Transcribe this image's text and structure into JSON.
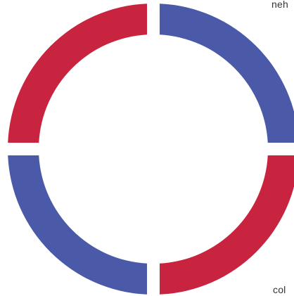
{
  "chart_data": {
    "type": "pie",
    "title": "",
    "variant": "donut",
    "series": [
      {
        "name": "",
        "segments": [
          {
            "label": "",
            "value": 25,
            "color": "#4a5aa8"
          },
          {
            "label": "",
            "value": 25,
            "color": "#c8233f"
          },
          {
            "label": "",
            "value": 25,
            "color": "#4a5aa8"
          },
          {
            "label": "",
            "value": 25,
            "color": "#c8233f"
          }
        ]
      }
    ]
  },
  "labels": {
    "top": "neh",
    "bottom": "col"
  },
  "colors": {
    "blue": "#4a5aa8",
    "red": "#c8233f",
    "background": "#ffffff"
  }
}
